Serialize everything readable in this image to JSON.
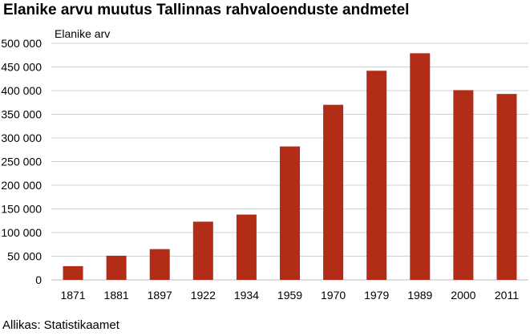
{
  "chart_data": {
    "type": "bar",
    "title": "Elanike arvu muutus Tallinnas rahvaloenduste andmetel",
    "ylabel": "Elanike arv",
    "xlabel": "",
    "categories": [
      "1871",
      "1881",
      "1897",
      "1922",
      "1934",
      "1959",
      "1970",
      "1979",
      "1989",
      "2000",
      "2011"
    ],
    "values": [
      29000,
      51000,
      65000,
      123000,
      138000,
      282000,
      370000,
      442000,
      479000,
      401000,
      393000
    ],
    "ylim": [
      0,
      500000
    ],
    "yticks": [
      0,
      50000,
      100000,
      150000,
      200000,
      250000,
      300000,
      350000,
      400000,
      450000,
      500000
    ],
    "ytick_labels": [
      "0",
      "50 000",
      "100 000",
      "150 000",
      "200 000",
      "250 000",
      "300 000",
      "350 000",
      "400 000",
      "450 000",
      "500 000"
    ],
    "grid": true,
    "bar_color": "#b22c17",
    "grid_color": "#d0d0d0",
    "source": "Allikas: Statistikaamet"
  }
}
